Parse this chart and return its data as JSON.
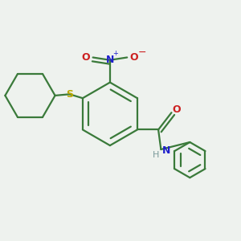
{
  "background_color": "#eef2ee",
  "bond_color": "#3a7a3a",
  "line_width": 1.6,
  "figsize": [
    3.0,
    3.0
  ],
  "dpi": 100,
  "xlim": [
    -0.7,
    1.1
  ],
  "ylim": [
    -0.75,
    0.75
  ]
}
